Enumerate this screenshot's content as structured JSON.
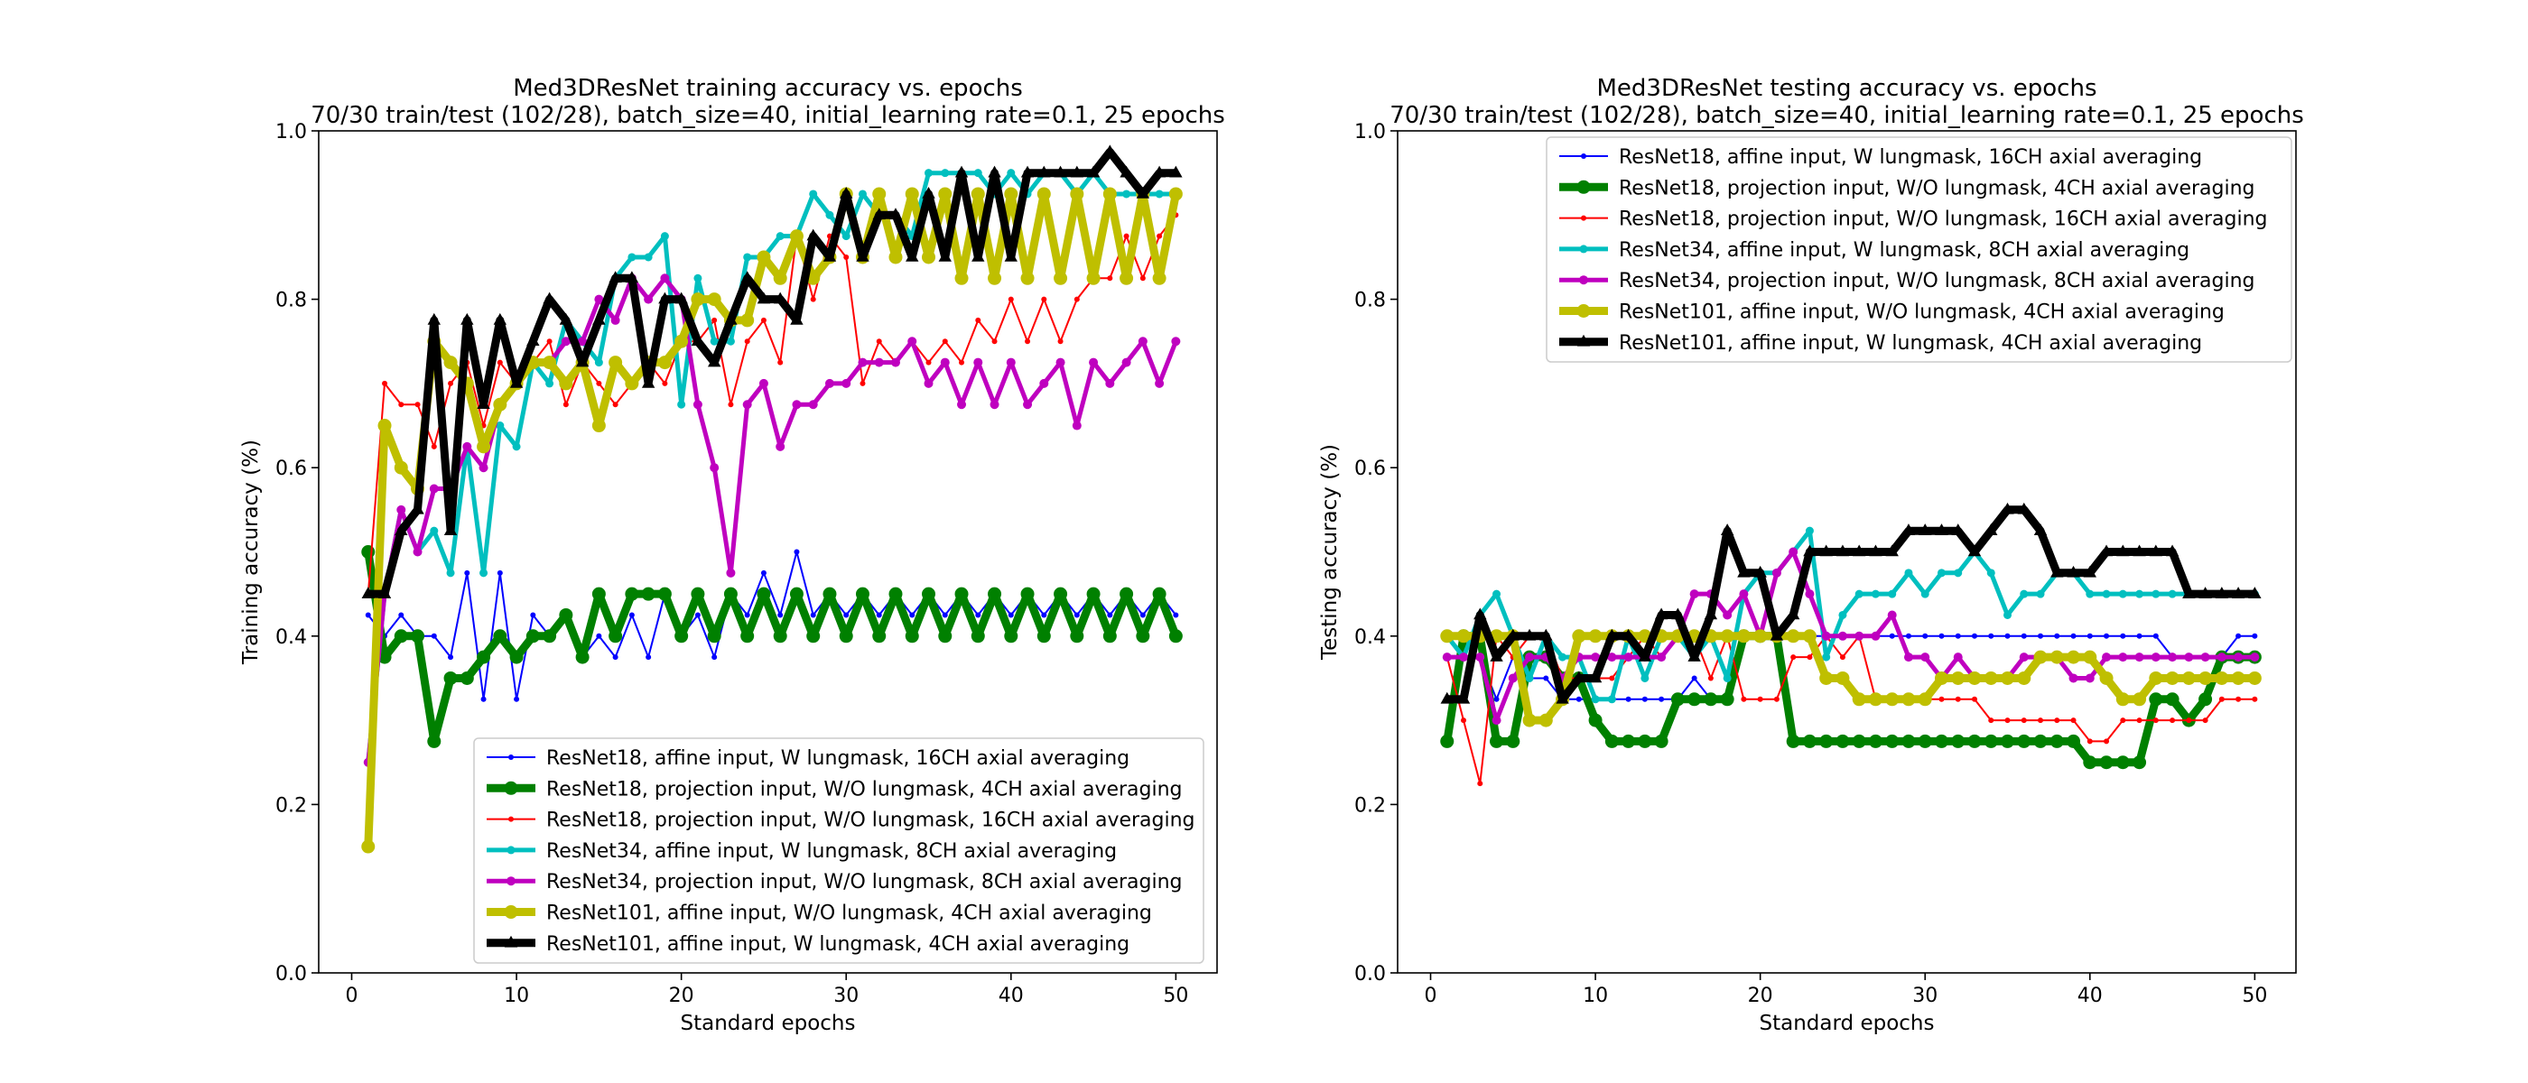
{
  "chart_data": [
    {
      "type": "line",
      "title": "Med3DResNet training accuracy vs. epochs",
      "subtitle": "70/30 train/test (102/28), batch_size=40, initial_learning rate=0.1, 25 epochs",
      "xlabel": "Standard epochs",
      "ylabel": "Training accuracy (%)",
      "xlim": [
        -2,
        52.5
      ],
      "ylim": [
        0.0,
        1.0
      ],
      "xticks": [
        0,
        10,
        20,
        30,
        40,
        50
      ],
      "yticks": [
        0.0,
        0.2,
        0.4,
        0.6,
        0.8,
        1.0
      ],
      "grid": false,
      "legend_position": "lower right",
      "x": [
        1,
        2,
        3,
        4,
        5,
        6,
        7,
        8,
        9,
        10,
        11,
        12,
        13,
        14,
        15,
        16,
        17,
        18,
        19,
        20,
        21,
        22,
        23,
        24,
        25,
        26,
        27,
        28,
        29,
        30,
        31,
        32,
        33,
        34,
        35,
        36,
        37,
        38,
        39,
        40,
        41,
        42,
        43,
        44,
        45,
        46,
        47,
        48,
        49,
        50
      ],
      "series": [
        {
          "name": "ResNet18, affine input, W lungmask, 16CH axial averaging",
          "color": "#0000ff",
          "values": [
            0.425,
            0.4,
            0.425,
            0.4,
            0.4,
            0.375,
            0.475,
            0.325,
            0.475,
            0.325,
            0.425,
            0.4,
            0.425,
            0.375,
            0.4,
            0.375,
            0.425,
            0.375,
            0.45,
            0.4,
            0.425,
            0.375,
            0.45,
            0.425,
            0.475,
            0.425,
            0.5,
            0.425,
            0.45,
            0.425,
            0.45,
            0.425,
            0.45,
            0.425,
            0.45,
            0.425,
            0.45,
            0.425,
            0.45,
            0.425,
            0.45,
            0.425,
            0.45,
            0.425,
            0.45,
            0.425,
            0.45,
            0.425,
            0.45,
            0.425
          ]
        },
        {
          "name": "ResNet18, projection input, W/O lungmask, 4CH axial averaging",
          "color": "#008000",
          "values": [
            0.5,
            0.375,
            0.4,
            0.4,
            0.275,
            0.35,
            0.35,
            0.375,
            0.4,
            0.375,
            0.4,
            0.4,
            0.425,
            0.375,
            0.45,
            0.4,
            0.45,
            0.45,
            0.45,
            0.4,
            0.45,
            0.4,
            0.45,
            0.4,
            0.45,
            0.4,
            0.45,
            0.4,
            0.45,
            0.4,
            0.45,
            0.4,
            0.45,
            0.4,
            0.45,
            0.4,
            0.45,
            0.4,
            0.45,
            0.4,
            0.45,
            0.4,
            0.45,
            0.4,
            0.45,
            0.4,
            0.45,
            0.4,
            0.45,
            0.4
          ]
        },
        {
          "name": "ResNet18, projection input, W/O lungmask, 16CH axial averaging",
          "color": "#ff0000",
          "values": [
            0.45,
            0.7,
            0.675,
            0.675,
            0.625,
            0.7,
            0.725,
            0.65,
            0.725,
            0.7,
            0.725,
            0.75,
            0.675,
            0.725,
            0.7,
            0.675,
            0.7,
            0.725,
            0.7,
            0.75,
            0.75,
            0.775,
            0.675,
            0.75,
            0.775,
            0.725,
            0.875,
            0.8,
            0.875,
            0.85,
            0.7,
            0.75,
            0.725,
            0.75,
            0.725,
            0.75,
            0.725,
            0.775,
            0.75,
            0.8,
            0.75,
            0.8,
            0.75,
            0.8,
            0.825,
            0.825,
            0.875,
            0.825,
            0.875,
            0.9
          ]
        },
        {
          "name": "ResNet34, affine input, W lungmask, 8CH axial averaging",
          "color": "#00bfbf",
          "values": [
            0.25,
            0.45,
            0.55,
            0.5,
            0.525,
            0.475,
            0.625,
            0.475,
            0.65,
            0.625,
            0.725,
            0.7,
            0.775,
            0.75,
            0.725,
            0.825,
            0.85,
            0.85,
            0.875,
            0.675,
            0.825,
            0.75,
            0.75,
            0.85,
            0.85,
            0.875,
            0.875,
            0.925,
            0.9,
            0.875,
            0.925,
            0.9,
            0.9,
            0.875,
            0.95,
            0.95,
            0.95,
            0.95,
            0.925,
            0.95,
            0.925,
            0.95,
            0.95,
            0.925,
            0.95,
            0.925,
            0.925,
            0.925,
            0.925,
            0.925
          ]
        },
        {
          "name": "ResNet34, projection input, W/O lungmask, 8CH axial averaging",
          "color": "#bf00bf",
          "values": [
            0.25,
            0.45,
            0.55,
            0.5,
            0.575,
            0.575,
            0.625,
            0.6,
            0.675,
            0.7,
            0.725,
            0.725,
            0.75,
            0.75,
            0.8,
            0.775,
            0.825,
            0.8,
            0.825,
            0.8,
            0.675,
            0.6,
            0.475,
            0.675,
            0.7,
            0.625,
            0.675,
            0.675,
            0.7,
            0.7,
            0.725,
            0.725,
            0.725,
            0.75,
            0.7,
            0.725,
            0.675,
            0.725,
            0.675,
            0.725,
            0.675,
            0.7,
            0.725,
            0.65,
            0.725,
            0.7,
            0.725,
            0.75,
            0.7,
            0.75
          ]
        },
        {
          "name": "ResNet101, affine input, W/O lungmask, 4CH axial averaging",
          "color": "#bfbf00",
          "values": [
            0.15,
            0.65,
            0.6,
            0.575,
            0.75,
            0.725,
            0.7,
            0.625,
            0.675,
            0.7,
            0.725,
            0.725,
            0.7,
            0.725,
            0.65,
            0.725,
            0.7,
            0.725,
            0.725,
            0.75,
            0.8,
            0.8,
            0.775,
            0.775,
            0.85,
            0.825,
            0.875,
            0.825,
            0.85,
            0.925,
            0.85,
            0.925,
            0.85,
            0.925,
            0.85,
            0.925,
            0.825,
            0.925,
            0.825,
            0.925,
            0.825,
            0.925,
            0.825,
            0.925,
            0.825,
            0.925,
            0.825,
            0.925,
            0.825,
            0.925
          ]
        },
        {
          "name": "ResNet101, affine input, W lungmask, 4CH axial averaging",
          "color": "#000000",
          "values": [
            0.45,
            0.45,
            0.525,
            0.55,
            0.775,
            0.525,
            0.775,
            0.675,
            0.775,
            0.7,
            0.75,
            0.8,
            0.775,
            0.725,
            0.775,
            0.825,
            0.825,
            0.7,
            0.8,
            0.8,
            0.75,
            0.725,
            0.775,
            0.825,
            0.8,
            0.8,
            0.775,
            0.875,
            0.85,
            0.925,
            0.85,
            0.9,
            0.9,
            0.85,
            0.925,
            0.85,
            0.95,
            0.85,
            0.95,
            0.85,
            0.95,
            0.95,
            0.95,
            0.95,
            0.95,
            0.975,
            0.95,
            0.925,
            0.95,
            0.95
          ]
        }
      ]
    },
    {
      "type": "line",
      "title": "Med3DResNet testing accuracy vs. epochs",
      "subtitle": "70/30 train/test (102/28), batch_size=40, initial_learning rate=0.1, 25 epochs",
      "xlabel": "Standard epochs",
      "ylabel": "Testing accuracy (%)",
      "xlim": [
        -2,
        52.5
      ],
      "ylim": [
        0.0,
        1.0
      ],
      "xticks": [
        0,
        10,
        20,
        30,
        40,
        50
      ],
      "yticks": [
        0.0,
        0.2,
        0.4,
        0.6,
        0.8,
        1.0
      ],
      "grid": false,
      "legend_position": "upper right",
      "x": [
        1,
        2,
        3,
        4,
        5,
        6,
        7,
        8,
        9,
        10,
        11,
        12,
        13,
        14,
        15,
        16,
        17,
        18,
        19,
        20,
        21,
        22,
        23,
        24,
        25,
        26,
        27,
        28,
        29,
        30,
        31,
        32,
        33,
        34,
        35,
        36,
        37,
        38,
        39,
        40,
        41,
        42,
        43,
        44,
        45,
        46,
        47,
        48,
        49,
        50
      ],
      "series": [
        {
          "name": "ResNet18, affine input, W lungmask, 16CH axial averaging",
          "color": "#0000ff",
          "values": [
            0.375,
            0.375,
            0.375,
            0.325,
            0.375,
            0.35,
            0.35,
            0.325,
            0.325,
            0.325,
            0.325,
            0.325,
            0.325,
            0.325,
            0.325,
            0.35,
            0.325,
            0.325,
            0.4,
            0.4,
            0.4,
            0.4,
            0.4,
            0.4,
            0.4,
            0.4,
            0.4,
            0.4,
            0.4,
            0.4,
            0.4,
            0.4,
            0.4,
            0.4,
            0.4,
            0.4,
            0.4,
            0.4,
            0.4,
            0.4,
            0.4,
            0.4,
            0.4,
            0.4,
            0.375,
            0.375,
            0.375,
            0.375,
            0.4,
            0.4
          ]
        },
        {
          "name": "ResNet18, projection input, W/O lungmask, 4CH axial averaging",
          "color": "#008000",
          "values": [
            0.275,
            0.4,
            0.4,
            0.275,
            0.275,
            0.375,
            0.375,
            0.35,
            0.35,
            0.3,
            0.275,
            0.275,
            0.275,
            0.275,
            0.325,
            0.325,
            0.325,
            0.325,
            0.4,
            0.4,
            0.4,
            0.275,
            0.275,
            0.275,
            0.275,
            0.275,
            0.275,
            0.275,
            0.275,
            0.275,
            0.275,
            0.275,
            0.275,
            0.275,
            0.275,
            0.275,
            0.275,
            0.275,
            0.275,
            0.25,
            0.25,
            0.25,
            0.25,
            0.325,
            0.325,
            0.3,
            0.325,
            0.375,
            0.375,
            0.375
          ]
        },
        {
          "name": "ResNet18, projection input, W/O lungmask, 16CH axial averaging",
          "color": "#ff0000",
          "values": [
            0.375,
            0.3,
            0.225,
            0.4,
            0.375,
            0.4,
            0.4,
            0.35,
            0.35,
            0.35,
            0.35,
            0.375,
            0.4,
            0.375,
            0.4,
            0.4,
            0.35,
            0.4,
            0.325,
            0.325,
            0.325,
            0.375,
            0.375,
            0.4,
            0.375,
            0.4,
            0.325,
            0.325,
            0.325,
            0.325,
            0.325,
            0.325,
            0.325,
            0.3,
            0.3,
            0.3,
            0.3,
            0.3,
            0.3,
            0.275,
            0.275,
            0.3,
            0.3,
            0.3,
            0.3,
            0.3,
            0.3,
            0.325,
            0.325,
            0.325
          ]
        },
        {
          "name": "ResNet34, affine input, W lungmask, 8CH axial averaging",
          "color": "#00bfbf",
          "values": [
            0.4,
            0.375,
            0.425,
            0.45,
            0.4,
            0.35,
            0.4,
            0.375,
            0.375,
            0.325,
            0.325,
            0.4,
            0.35,
            0.4,
            0.4,
            0.375,
            0.4,
            0.35,
            0.45,
            0.475,
            0.475,
            0.5,
            0.525,
            0.375,
            0.425,
            0.45,
            0.45,
            0.45,
            0.475,
            0.45,
            0.475,
            0.475,
            0.5,
            0.475,
            0.425,
            0.45,
            0.45,
            0.475,
            0.475,
            0.45,
            0.45,
            0.45,
            0.45,
            0.45,
            0.45,
            0.45,
            0.45,
            0.45,
            0.45,
            0.45
          ]
        },
        {
          "name": "ResNet34, projection input, W/O lungmask, 8CH axial averaging",
          "color": "#bf00bf",
          "values": [
            0.375,
            0.375,
            0.375,
            0.3,
            0.35,
            0.375,
            0.375,
            0.35,
            0.375,
            0.375,
            0.375,
            0.375,
            0.375,
            0.375,
            0.4,
            0.45,
            0.45,
            0.425,
            0.45,
            0.4,
            0.475,
            0.5,
            0.45,
            0.4,
            0.4,
            0.4,
            0.4,
            0.425,
            0.375,
            0.375,
            0.35,
            0.375,
            0.35,
            0.35,
            0.35,
            0.375,
            0.375,
            0.375,
            0.35,
            0.35,
            0.375,
            0.375,
            0.375,
            0.375,
            0.375,
            0.375,
            0.375,
            0.375,
            0.375,
            0.375
          ]
        },
        {
          "name": "ResNet101, affine input, W/O lungmask, 4CH axial averaging",
          "color": "#bfbf00",
          "values": [
            0.4,
            0.4,
            0.4,
            0.4,
            0.4,
            0.3,
            0.3,
            0.325,
            0.4,
            0.4,
            0.4,
            0.4,
            0.4,
            0.4,
            0.4,
            0.4,
            0.4,
            0.4,
            0.4,
            0.4,
            0.4,
            0.4,
            0.4,
            0.35,
            0.35,
            0.325,
            0.325,
            0.325,
            0.325,
            0.325,
            0.35,
            0.35,
            0.35,
            0.35,
            0.35,
            0.35,
            0.375,
            0.375,
            0.375,
            0.375,
            0.35,
            0.325,
            0.325,
            0.35,
            0.35,
            0.35,
            0.35,
            0.35,
            0.35,
            0.35
          ]
        },
        {
          "name": "ResNet101, affine input, W lungmask, 4CH axial averaging",
          "color": "#000000",
          "values": [
            0.325,
            0.325,
            0.425,
            0.375,
            0.4,
            0.4,
            0.4,
            0.325,
            0.35,
            0.35,
            0.4,
            0.4,
            0.375,
            0.425,
            0.425,
            0.375,
            0.425,
            0.525,
            0.475,
            0.475,
            0.4,
            0.425,
            0.5,
            0.5,
            0.5,
            0.5,
            0.5,
            0.5,
            0.525,
            0.525,
            0.525,
            0.525,
            0.5,
            0.525,
            0.55,
            0.55,
            0.525,
            0.475,
            0.475,
            0.475,
            0.5,
            0.5,
            0.5,
            0.5,
            0.5,
            0.45,
            0.45,
            0.45,
            0.45,
            0.45
          ]
        }
      ]
    }
  ]
}
